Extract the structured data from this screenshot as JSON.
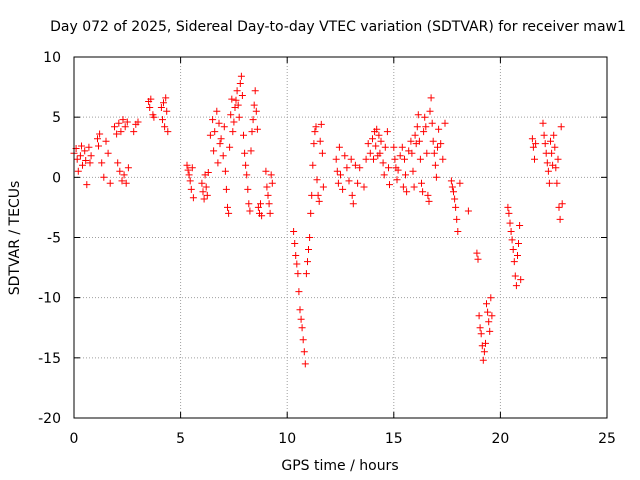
{
  "chart_data": {
    "type": "scatter",
    "title": "Day 072 of 2025, Sidereal Day-to-day VTEC variation (SDTVAR) for receiver maw1",
    "xlabel": "GPS time / hours",
    "ylabel": "SDTVAR / TECUs",
    "xlim": [
      0,
      25
    ],
    "ylim": [
      -20,
      10
    ],
    "xticks": [
      0,
      5,
      10,
      15,
      20,
      25
    ],
    "yticks": [
      -20,
      -15,
      -10,
      -5,
      0,
      5,
      10
    ],
    "xtick_labels": [
      "0",
      "5",
      "10",
      "15",
      "20",
      "25"
    ],
    "ytick_labels": [
      "-20",
      "-15",
      "-10",
      "-5",
      "0",
      "5",
      "10"
    ],
    "grid": true,
    "marker": "+",
    "color": "#ff0000",
    "series": [
      {
        "name": "SDTVAR",
        "points": [
          [
            0.0,
            2.0
          ],
          [
            0.1,
            2.4
          ],
          [
            0.15,
            1.5
          ],
          [
            0.2,
            0.5
          ],
          [
            0.3,
            1.8
          ],
          [
            0.35,
            2.6
          ],
          [
            0.4,
            1.0
          ],
          [
            0.5,
            2.2
          ],
          [
            0.55,
            1.4
          ],
          [
            0.6,
            -0.6
          ],
          [
            0.7,
            2.5
          ],
          [
            0.75,
            1.2
          ],
          [
            0.8,
            1.8
          ],
          [
            1.1,
            3.2
          ],
          [
            1.15,
            2.6
          ],
          [
            1.2,
            3.6
          ],
          [
            1.3,
            1.2
          ],
          [
            1.4,
            0.0
          ],
          [
            1.5,
            3.0
          ],
          [
            1.6,
            2.0
          ],
          [
            1.7,
            -0.5
          ],
          [
            1.9,
            4.2
          ],
          [
            2.0,
            3.6
          ],
          [
            2.05,
            1.2
          ],
          [
            2.1,
            4.5
          ],
          [
            2.15,
            0.5
          ],
          [
            2.2,
            3.8
          ],
          [
            2.25,
            -0.3
          ],
          [
            2.3,
            4.8
          ],
          [
            2.35,
            0.2
          ],
          [
            2.4,
            4.2
          ],
          [
            2.45,
            -0.5
          ],
          [
            2.5,
            4.6
          ],
          [
            2.55,
            0.8
          ],
          [
            2.8,
            3.8
          ],
          [
            2.9,
            4.4
          ],
          [
            3.0,
            4.6
          ],
          [
            3.5,
            6.3
          ],
          [
            3.55,
            5.8
          ],
          [
            3.6,
            6.5
          ],
          [
            3.7,
            5.2
          ],
          [
            3.75,
            5.0
          ],
          [
            4.1,
            5.8
          ],
          [
            4.15,
            4.8
          ],
          [
            4.2,
            6.2
          ],
          [
            4.25,
            4.2
          ],
          [
            4.3,
            6.6
          ],
          [
            4.35,
            5.5
          ],
          [
            4.4,
            3.8
          ],
          [
            5.3,
            1.0
          ],
          [
            5.35,
            0.6
          ],
          [
            5.4,
            0.2
          ],
          [
            5.45,
            -0.3
          ],
          [
            5.5,
            -1.0
          ],
          [
            5.55,
            0.8
          ],
          [
            5.6,
            -1.7
          ],
          [
            6.0,
            -0.5
          ],
          [
            6.05,
            -1.2
          ],
          [
            6.1,
            -1.8
          ],
          [
            6.15,
            0.2
          ],
          [
            6.2,
            -0.8
          ],
          [
            6.25,
            -1.5
          ],
          [
            6.3,
            0.4
          ],
          [
            6.4,
            3.5
          ],
          [
            6.5,
            4.8
          ],
          [
            6.55,
            2.2
          ],
          [
            6.6,
            3.8
          ],
          [
            6.7,
            5.5
          ],
          [
            6.75,
            1.2
          ],
          [
            6.8,
            4.5
          ],
          [
            6.85,
            2.8
          ],
          [
            6.9,
            3.2
          ],
          [
            7.0,
            1.8
          ],
          [
            7.05,
            4.2
          ],
          [
            7.1,
            0.5
          ],
          [
            7.15,
            -1.0
          ],
          [
            7.2,
            -2.5
          ],
          [
            7.25,
            -3.0
          ],
          [
            7.3,
            2.5
          ],
          [
            7.35,
            5.2
          ],
          [
            7.4,
            6.5
          ],
          [
            7.45,
            3.8
          ],
          [
            7.5,
            4.6
          ],
          [
            7.55,
            5.8
          ],
          [
            7.6,
            6.4
          ],
          [
            7.65,
            7.2
          ],
          [
            7.7,
            6.0
          ],
          [
            7.75,
            5.0
          ],
          [
            7.8,
            7.8
          ],
          [
            7.85,
            8.4
          ],
          [
            7.9,
            6.8
          ],
          [
            7.95,
            3.5
          ],
          [
            8.0,
            2.0
          ],
          [
            8.05,
            1.0
          ],
          [
            8.1,
            0.2
          ],
          [
            8.15,
            -1.0
          ],
          [
            8.2,
            -2.2
          ],
          [
            8.25,
            -2.8
          ],
          [
            8.3,
            2.2
          ],
          [
            8.35,
            3.8
          ],
          [
            8.4,
            4.8
          ],
          [
            8.45,
            6.0
          ],
          [
            8.5,
            7.2
          ],
          [
            8.55,
            5.5
          ],
          [
            8.6,
            4.0
          ],
          [
            8.65,
            -2.5
          ],
          [
            8.7,
            -3.0
          ],
          [
            8.75,
            -2.2
          ],
          [
            8.8,
            -3.2
          ],
          [
            9.0,
            0.5
          ],
          [
            9.05,
            -0.8
          ],
          [
            9.1,
            -1.5
          ],
          [
            9.15,
            -2.2
          ],
          [
            9.2,
            -3.0
          ],
          [
            9.25,
            0.2
          ],
          [
            9.3,
            -0.5
          ],
          [
            10.3,
            -4.5
          ],
          [
            10.35,
            -5.5
          ],
          [
            10.4,
            -6.5
          ],
          [
            10.45,
            -7.2
          ],
          [
            10.5,
            -8.0
          ],
          [
            10.55,
            -9.5
          ],
          [
            10.6,
            -11.0
          ],
          [
            10.65,
            -11.8
          ],
          [
            10.7,
            -12.5
          ],
          [
            10.75,
            -13.5
          ],
          [
            10.8,
            -14.5
          ],
          [
            10.85,
            -15.5
          ],
          [
            10.9,
            -8.0
          ],
          [
            10.95,
            -7.0
          ],
          [
            11.0,
            -6.0
          ],
          [
            11.05,
            -5.0
          ],
          [
            11.1,
            -3.0
          ],
          [
            11.15,
            -1.5
          ],
          [
            11.2,
            1.0
          ],
          [
            11.25,
            2.8
          ],
          [
            11.3,
            3.8
          ],
          [
            11.35,
            4.2
          ],
          [
            11.4,
            -0.2
          ],
          [
            11.45,
            -1.5
          ],
          [
            11.5,
            -2.0
          ],
          [
            11.55,
            3.0
          ],
          [
            11.6,
            4.4
          ],
          [
            11.65,
            2.0
          ],
          [
            11.7,
            -0.8
          ],
          [
            12.3,
            1.5
          ],
          [
            12.35,
            0.5
          ],
          [
            12.4,
            -0.5
          ],
          [
            12.45,
            2.5
          ],
          [
            12.5,
            0.2
          ],
          [
            12.6,
            -1.0
          ],
          [
            12.7,
            1.8
          ],
          [
            12.8,
            0.8
          ],
          [
            12.9,
            -0.3
          ],
          [
            13.0,
            1.5
          ],
          [
            13.05,
            -1.5
          ],
          [
            13.1,
            -2.2
          ],
          [
            13.2,
            1.0
          ],
          [
            13.3,
            -0.5
          ],
          [
            13.4,
            0.8
          ],
          [
            13.6,
            -0.8
          ],
          [
            13.7,
            1.5
          ],
          [
            13.8,
            2.8
          ],
          [
            13.9,
            2.0
          ],
          [
            14.0,
            3.2
          ],
          [
            14.05,
            1.5
          ],
          [
            14.1,
            3.8
          ],
          [
            14.15,
            2.6
          ],
          [
            14.2,
            4.0
          ],
          [
            14.25,
            1.8
          ],
          [
            14.3,
            3.5
          ],
          [
            14.35,
            2.0
          ],
          [
            14.4,
            3.0
          ],
          [
            14.5,
            1.2
          ],
          [
            14.55,
            0.2
          ],
          [
            14.6,
            2.5
          ],
          [
            14.7,
            3.8
          ],
          [
            14.75,
            0.8
          ],
          [
            14.8,
            -0.6
          ],
          [
            15.0,
            2.5
          ],
          [
            15.05,
            1.5
          ],
          [
            15.1,
            0.8
          ],
          [
            15.15,
            -0.2
          ],
          [
            15.2,
            0.6
          ],
          [
            15.3,
            1.8
          ],
          [
            15.4,
            2.5
          ],
          [
            15.45,
            -0.8
          ],
          [
            15.5,
            1.5
          ],
          [
            15.55,
            0.2
          ],
          [
            15.6,
            -1.2
          ],
          [
            15.7,
            2.2
          ],
          [
            15.8,
            3.0
          ],
          [
            15.85,
            2.0
          ],
          [
            15.9,
            0.5
          ],
          [
            15.95,
            -0.8
          ],
          [
            16.0,
            3.5
          ],
          [
            16.05,
            2.8
          ],
          [
            16.1,
            4.2
          ],
          [
            16.15,
            5.2
          ],
          [
            16.2,
            3.0
          ],
          [
            16.25,
            1.5
          ],
          [
            16.3,
            -0.5
          ],
          [
            16.35,
            -1.2
          ],
          [
            16.4,
            3.8
          ],
          [
            16.45,
            5.0
          ],
          [
            16.5,
            4.2
          ],
          [
            16.55,
            2.0
          ],
          [
            16.6,
            -1.5
          ],
          [
            16.65,
            -2.0
          ],
          [
            16.7,
            5.5
          ],
          [
            16.75,
            6.6
          ],
          [
            16.8,
            4.5
          ],
          [
            16.85,
            3.0
          ],
          [
            16.9,
            2.0
          ],
          [
            16.95,
            1.0
          ],
          [
            17.0,
            0.0
          ],
          [
            17.05,
            2.5
          ],
          [
            17.1,
            4.0
          ],
          [
            17.2,
            2.8
          ],
          [
            17.3,
            1.5
          ],
          [
            17.4,
            4.5
          ],
          [
            17.7,
            -0.3
          ],
          [
            17.75,
            -0.8
          ],
          [
            17.8,
            -1.2
          ],
          [
            17.85,
            -1.8
          ],
          [
            17.9,
            -2.5
          ],
          [
            17.95,
            -3.5
          ],
          [
            18.0,
            -4.5
          ],
          [
            18.1,
            -0.5
          ],
          [
            18.5,
            -2.8
          ],
          [
            18.9,
            -6.3
          ],
          [
            18.95,
            -6.8
          ],
          [
            19.0,
            -11.5
          ],
          [
            19.05,
            -12.5
          ],
          [
            19.1,
            -13.0
          ],
          [
            19.15,
            -14.0
          ],
          [
            19.2,
            -15.2
          ],
          [
            19.25,
            -14.5
          ],
          [
            19.3,
            -13.8
          ],
          [
            19.35,
            -10.5
          ],
          [
            19.4,
            -11.2
          ],
          [
            19.45,
            -12.0
          ],
          [
            19.5,
            -12.8
          ],
          [
            19.55,
            -10.0
          ],
          [
            19.6,
            -11.5
          ],
          [
            20.35,
            -2.5
          ],
          [
            20.4,
            -3.0
          ],
          [
            20.45,
            -3.8
          ],
          [
            20.5,
            -4.5
          ],
          [
            20.55,
            -5.2
          ],
          [
            20.6,
            -6.0
          ],
          [
            20.65,
            -7.0
          ],
          [
            20.7,
            -8.2
          ],
          [
            20.75,
            -9.0
          ],
          [
            20.8,
            -6.5
          ],
          [
            20.85,
            -5.5
          ],
          [
            20.9,
            -4.0
          ],
          [
            20.95,
            -8.5
          ],
          [
            21.5,
            3.2
          ],
          [
            21.55,
            2.5
          ],
          [
            21.6,
            1.5
          ],
          [
            21.65,
            2.8
          ],
          [
            22.0,
            4.5
          ],
          [
            22.05,
            3.5
          ],
          [
            22.1,
            2.8
          ],
          [
            22.15,
            2.0
          ],
          [
            22.2,
            1.2
          ],
          [
            22.25,
            0.5
          ],
          [
            22.3,
            -0.5
          ],
          [
            22.35,
            3.0
          ],
          [
            22.4,
            2.0
          ],
          [
            22.45,
            1.0
          ],
          [
            22.5,
            3.5
          ],
          [
            22.55,
            2.5
          ],
          [
            22.6,
            0.8
          ],
          [
            22.65,
            -0.5
          ],
          [
            22.7,
            1.5
          ],
          [
            22.75,
            -2.5
          ],
          [
            22.8,
            -3.5
          ],
          [
            22.85,
            4.2
          ],
          [
            22.9,
            -2.2
          ]
        ]
      }
    ]
  }
}
